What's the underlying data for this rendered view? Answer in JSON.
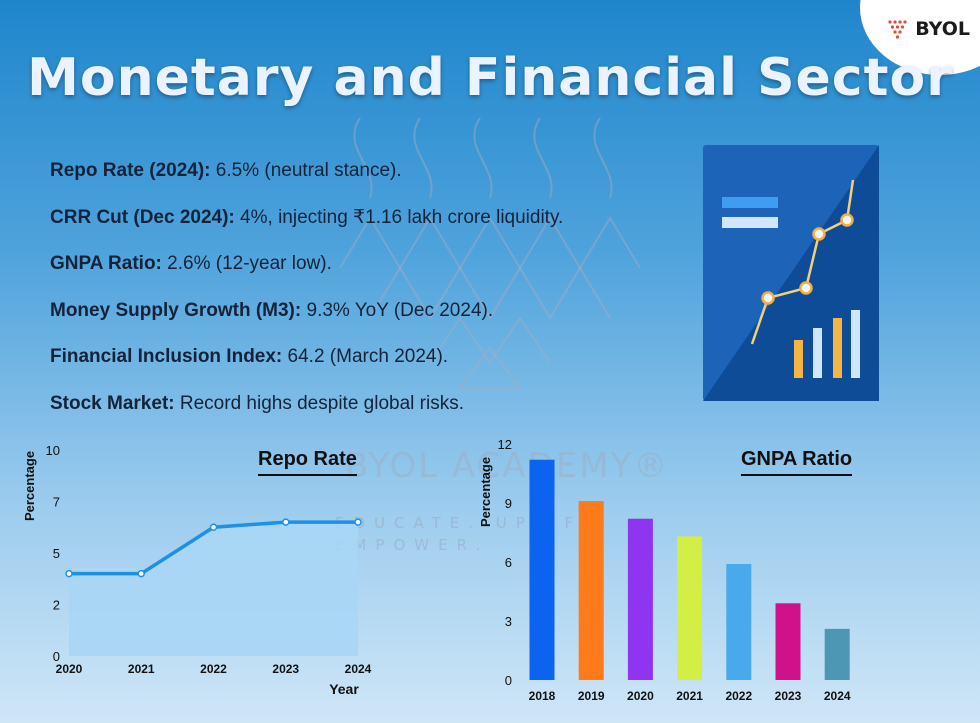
{
  "brand": {
    "logo_text": "BYOL"
  },
  "page_title": "Monetary and Financial Sector",
  "watermark": {
    "text": "BYOL ACADEMY®",
    "subtext": "EDUCATE. UPLIFT. EMPOWER."
  },
  "facts": [
    {
      "label": "Repo Rate (2024):",
      "value": " 6.5% (neutral stance)."
    },
    {
      "label": "CRR Cut (Dec 2024):",
      "value": " 4%, injecting ₹1.16 lakh crore liquidity."
    },
    {
      "label": "GNPA Ratio:",
      "value": " 2.6% (12-year low)."
    },
    {
      "label": "Money Supply Growth (M3):",
      "value": " 9.3% YoY (Dec 2024)."
    },
    {
      "label": "Financial Inclusion Index:",
      "value": " 64.2 (March 2024)."
    },
    {
      "label": "Stock Market:",
      "value": " Record highs despite global risks."
    }
  ],
  "colors": {
    "line": "#1e90e6",
    "area": "#a9d6f5"
  },
  "chart_data": [
    {
      "type": "area",
      "title": "Repo Rate",
      "xlabel": "Year",
      "ylabel": "Percentage",
      "x": [
        "2020",
        "2021",
        "2022",
        "2023",
        "2024"
      ],
      "y": [
        4.0,
        4.0,
        6.25,
        6.5,
        6.5
      ],
      "yticks": [
        "0",
        "2",
        "5",
        "7",
        "10"
      ],
      "ylim": [
        0,
        10
      ],
      "grid": false,
      "line_color": "#1e90e6",
      "fill_color": "#a9d6f5"
    },
    {
      "type": "bar",
      "title": "GNPA Ratio",
      "xlabel": "",
      "ylabel": "Percentage",
      "categories": [
        "2018",
        "2019",
        "2020",
        "2021",
        "2022",
        "2023",
        "2024"
      ],
      "values": [
        11.2,
        9.1,
        8.2,
        7.3,
        5.9,
        3.9,
        2.6
      ],
      "yticks": [
        "0",
        "3",
        "6",
        "9",
        "12"
      ],
      "ylim": [
        0,
        12
      ],
      "grid": false,
      "bar_colors": [
        "#0b63f0",
        "#ff7a1a",
        "#8f34f0",
        "#d3ee45",
        "#4aa8ec",
        "#d0128a",
        "#4d97b5"
      ]
    }
  ]
}
